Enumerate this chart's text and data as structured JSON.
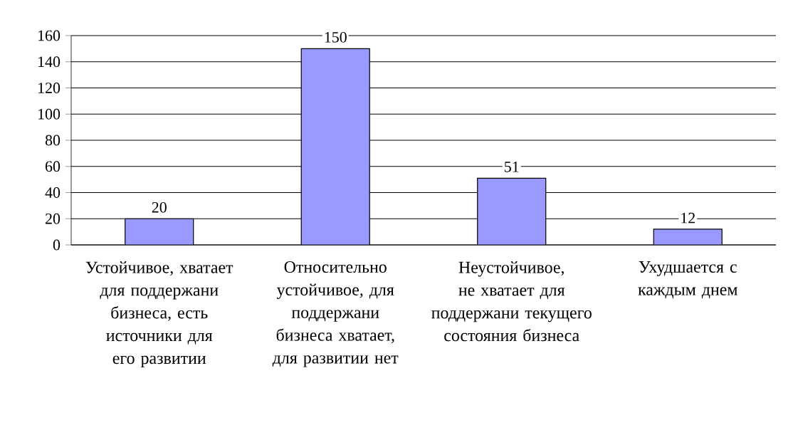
{
  "chart_data": {
    "type": "bar",
    "categories": [
      "Устойчивое, хватает для поддержани бизнеса, есть источники для его развитии",
      "Относительно устойчивое, для поддержани бизнеса хватает, для развитии нет",
      "Неустойчивое, не хватает для поддержани текущего состояния бизнеса",
      "Ухудшается с каждым днем"
    ],
    "values": [
      20,
      150,
      51,
      12
    ],
    "color": "#9999ff",
    "ylim": [
      0,
      160
    ],
    "yticks": [
      0,
      20,
      40,
      60,
      80,
      100,
      120,
      140,
      160
    ],
    "grid": "y",
    "data_labels": true
  }
}
